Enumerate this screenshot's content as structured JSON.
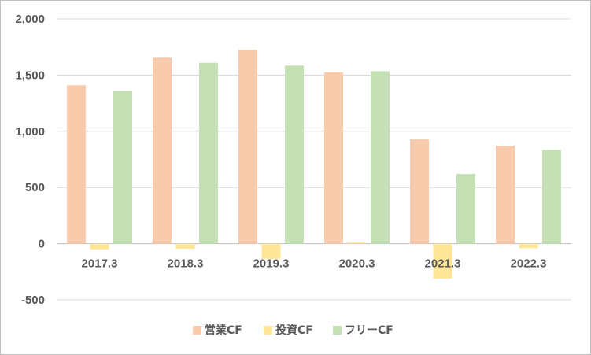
{
  "chart_data": {
    "type": "bar",
    "categories": [
      "2017.3",
      "2018.3",
      "2019.3",
      "2020.3",
      "2021.3",
      "2022.3"
    ],
    "series": [
      {
        "name": "営業CF",
        "color": "#f8cbad",
        "values": [
          1410,
          1655,
          1725,
          1525,
          930,
          870
        ]
      },
      {
        "name": "投資CF",
        "color": "#ffe699",
        "values": [
          -50,
          -45,
          -135,
          10,
          -310,
          -40
        ]
      },
      {
        "name": "フリーCF",
        "color": "#c5e0b4",
        "values": [
          1360,
          1610,
          1585,
          1535,
          620,
          835
        ]
      }
    ],
    "yticks": [
      "2,000",
      "1,500",
      "1,000",
      "500",
      "0",
      "-500"
    ],
    "ylim": [
      -500,
      2000
    ],
    "grid": true,
    "legend": "bottom"
  }
}
